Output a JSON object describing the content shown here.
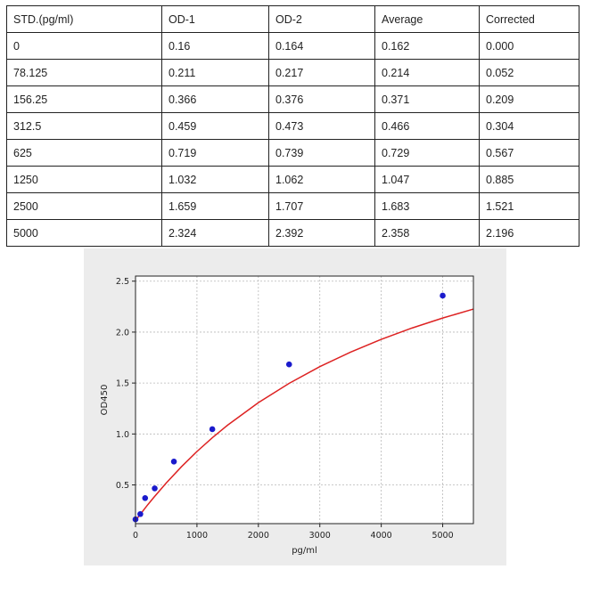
{
  "table": {
    "headers": [
      "STD.(pg/ml)",
      "OD-1",
      "OD-2",
      "Average",
      "Corrected"
    ],
    "rows": [
      [
        "0",
        "0.16",
        "0.164",
        "0.162",
        "0.000"
      ],
      [
        "78.125",
        "0.211",
        "0.217",
        "0.214",
        "0.052"
      ],
      [
        "156.25",
        "0.366",
        "0.376",
        "0.371",
        "0.209"
      ],
      [
        "312.5",
        "0.459",
        "0.473",
        "0.466",
        "0.304"
      ],
      [
        "625",
        "0.719",
        "0.739",
        "0.729",
        "0.567"
      ],
      [
        "1250",
        "1.032",
        "1.062",
        "1.047",
        "0.885"
      ],
      [
        "2500",
        "1.659",
        "1.707",
        "1.683",
        "1.521"
      ],
      [
        "5000",
        "2.324",
        "2.392",
        "2.358",
        "2.196"
      ]
    ]
  },
  "chart_data": {
    "type": "scatter",
    "title": "",
    "xlabel": "pg/ml",
    "ylabel": "OD450",
    "xlim": [
      0,
      5500
    ],
    "ylim": [
      0.12,
      2.55
    ],
    "xticks": [
      0,
      1000,
      2000,
      3000,
      4000,
      5000
    ],
    "xtick_labels": [
      "0",
      "1000",
      "2000",
      "3000",
      "4000",
      "5000"
    ],
    "yticks": [
      0.5,
      1.0,
      1.5,
      2.0,
      2.5
    ],
    "ytick_labels": [
      "0.5",
      "1.0",
      "1.5",
      "2.0",
      "2.5"
    ],
    "grid": true,
    "series": [
      {
        "kind": "points",
        "color": "#1a1acc",
        "x": [
          0,
          78.125,
          156.25,
          312.5,
          625,
          1250,
          2500,
          5000
        ],
        "y": [
          0.162,
          0.214,
          0.371,
          0.466,
          0.729,
          1.047,
          1.683,
          2.358
        ]
      },
      {
        "kind": "fit-curve",
        "color": "#dd2222",
        "x": [
          0,
          50,
          100,
          200,
          300,
          500,
          750,
          1000,
          1250,
          1500,
          2000,
          2500,
          3000,
          3500,
          4000,
          4500,
          5000,
          5500
        ],
        "y": [
          0.15,
          0.19,
          0.229,
          0.306,
          0.379,
          0.519,
          0.68,
          0.828,
          0.963,
          1.087,
          1.308,
          1.497,
          1.661,
          1.803,
          1.929,
          2.04,
          2.138,
          2.226
        ]
      }
    ]
  }
}
